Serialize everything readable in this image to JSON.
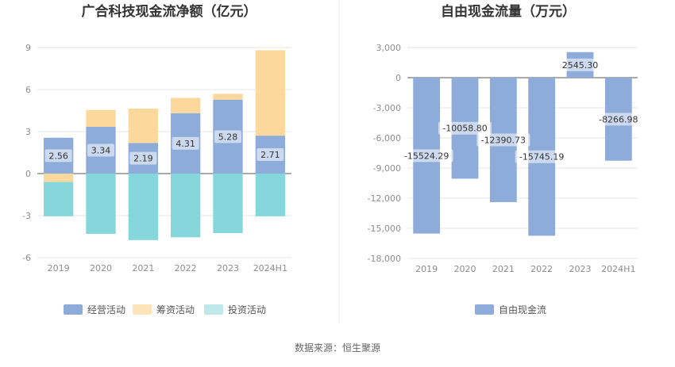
{
  "chart_data": [
    {
      "type": "bar",
      "stacked": true,
      "title": "广合科技现金流净额（亿元）",
      "categories": [
        "2019",
        "2020",
        "2021",
        "2022",
        "2023",
        "2024H1"
      ],
      "ylim": [
        -6,
        9
      ],
      "yticks": [
        "9",
        "6",
        "3",
        "0",
        "-3",
        "-6"
      ],
      "ytick_values": [
        9,
        6,
        3,
        0,
        -3,
        -6
      ],
      "grid": true,
      "legend_position": "bottom",
      "series": [
        {
          "name": "经营活动",
          "color": "#8eacd9",
          "values": [
            2.56,
            3.34,
            2.19,
            4.31,
            5.28,
            2.71
          ],
          "labels": [
            "2.56",
            "3.34",
            "2.19",
            "4.31",
            "5.28",
            "2.71"
          ]
        },
        {
          "name": "筹资活动",
          "color": "#fdd89c",
          "values": [
            -0.6,
            1.2,
            2.45,
            1.1,
            0.42,
            6.1
          ]
        },
        {
          "name": "投资活动",
          "color": "#86d7db",
          "values": [
            -2.45,
            -4.3,
            -4.75,
            -4.55,
            -4.25,
            -3.05
          ]
        }
      ],
      "legend": [
        {
          "name": "经营活动",
          "color": "#8eacd9"
        },
        {
          "name": "筹资活动",
          "color": "#fde3b8"
        },
        {
          "name": "投资活动",
          "color": "#bfe8ea"
        }
      ]
    },
    {
      "type": "bar",
      "title": "自由现金流量（万元）",
      "categories": [
        "2019",
        "2020",
        "2021",
        "2022",
        "2023",
        "2024H1"
      ],
      "ylim": [
        -18000,
        3000
      ],
      "yticks": [
        "3,000",
        "0",
        "-3,000",
        "-6,000",
        "-9,000",
        "-12,000",
        "-15,000",
        "-18,000"
      ],
      "ytick_values": [
        3000,
        0,
        -3000,
        -6000,
        -9000,
        -12000,
        -15000,
        -18000
      ],
      "grid": true,
      "legend_position": "bottom",
      "series": [
        {
          "name": "自由现金流",
          "color": "#8eacd9",
          "values": [
            -15524.29,
            -10058.8,
            -12390.73,
            -15745.19,
            2545.3,
            -8266.98
          ],
          "labels": [
            "-15524.29",
            "-10058.80",
            "-12390.73",
            "-15745.19",
            "2545.30",
            "-8266.98"
          ]
        }
      ]
    }
  ],
  "source": "数据来源：恒生聚源"
}
